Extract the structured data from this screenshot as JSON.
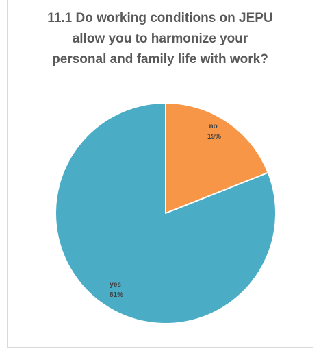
{
  "chart_data": {
    "type": "pie",
    "title_lines": [
      "11.1 Do working conditions on JEPU",
      "allow you to harmonize your",
      "personal and family life with work?"
    ],
    "slices": [
      {
        "label": "no",
        "value": 19,
        "value_label": "19%",
        "color": "#f79646"
      },
      {
        "label": "yes",
        "value": 81,
        "value_label": "81%",
        "color": "#4bacc6"
      }
    ],
    "legend": "none",
    "start_angle_deg": 0,
    "direction": "clockwise"
  }
}
